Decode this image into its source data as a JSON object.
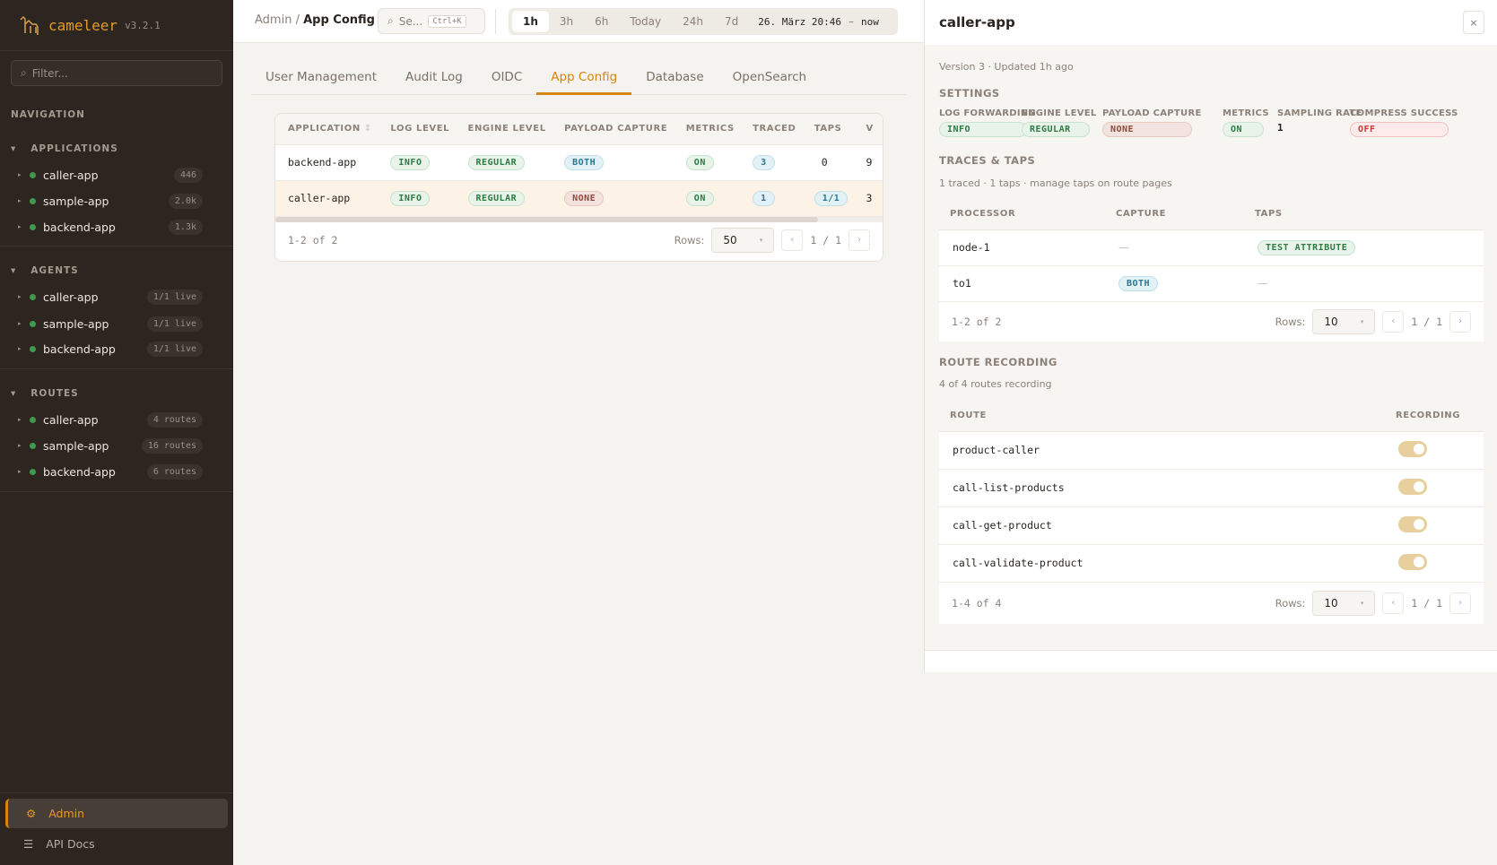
{
  "brand": {
    "name": "cameleer",
    "version": "v3.2.1"
  },
  "sidebar": {
    "filter_placeholder": "Filter...",
    "navigation": "NAVIGATION",
    "groups": [
      {
        "title": "APPLICATIONS",
        "items": [
          {
            "label": "caller-app",
            "badge": "446"
          },
          {
            "label": "sample-app",
            "badge": "2.0k"
          },
          {
            "label": "backend-app",
            "badge": "1.3k"
          }
        ]
      },
      {
        "title": "AGENTS",
        "items": [
          {
            "label": "caller-app",
            "badge": "1/1 live"
          },
          {
            "label": "sample-app",
            "badge": "1/1 live"
          },
          {
            "label": "backend-app",
            "badge": "1/1 live"
          }
        ]
      },
      {
        "title": "ROUTES",
        "items": [
          {
            "label": "caller-app",
            "badge": "4 routes"
          },
          {
            "label": "sample-app",
            "badge": "16 routes"
          },
          {
            "label": "backend-app",
            "badge": "6 routes"
          }
        ]
      }
    ],
    "admin": "Admin",
    "api_docs": "API Docs"
  },
  "topbar": {
    "crumb_root": "Admin",
    "crumb_current": "App Config",
    "search": "Se...",
    "search_kbd": "Ctrl+K",
    "ranges": [
      "1h",
      "3h",
      "6h",
      "Today",
      "24h",
      "7d"
    ],
    "range_from": "26. März 20:46",
    "range_sep": "–",
    "range_to": "now"
  },
  "tabs": [
    "User Management",
    "Audit Log",
    "OIDC",
    "App Config",
    "Database",
    "OpenSearch"
  ],
  "table": {
    "headers": [
      "APPLICATION",
      "LOG LEVEL",
      "ENGINE LEVEL",
      "PAYLOAD CAPTURE",
      "METRICS",
      "TRACED",
      "TAPS",
      "V"
    ],
    "rows": [
      {
        "app": "backend-app",
        "log": "INFO",
        "engine": "REGULAR",
        "payload": "BOTH",
        "metrics": "ON",
        "traced": "3",
        "taps": "0",
        "v": "9"
      },
      {
        "app": "caller-app",
        "log": "INFO",
        "engine": "REGULAR",
        "payload": "NONE",
        "metrics": "ON",
        "traced": "1",
        "taps": "1/1",
        "v": "3"
      }
    ],
    "count": "1-2 of 2",
    "rows_label": "Rows:",
    "rows_value": "50",
    "page": "1 / 1"
  },
  "panel": {
    "title": "caller-app",
    "close": "×",
    "meta": "Version 3 · Updated 1h ago",
    "settings_title": "SETTINGS",
    "settings": [
      {
        "label": "LOG FORWARDING",
        "value": "INFO"
      },
      {
        "label": "ENGINE LEVEL",
        "value": "REGULAR"
      },
      {
        "label": "PAYLOAD CAPTURE",
        "value": "NONE"
      },
      {
        "label": "METRICS",
        "value": "ON"
      },
      {
        "label": "SAMPLING RATE",
        "value": "1"
      },
      {
        "label": "COMPRESS SUCCESS",
        "value": "OFF"
      }
    ],
    "traces_title": "TRACES & TAPS",
    "traces_sub": "1 traced · 1 taps · manage taps on route pages",
    "traces_headers": [
      "PROCESSOR",
      "CAPTURE",
      "TAPS"
    ],
    "traces_rows": [
      {
        "processor": "node-1",
        "capture": "—",
        "taps": "TEST ATTRIBUTE"
      },
      {
        "processor": "to1",
        "capture": "BOTH",
        "taps": "—"
      }
    ],
    "traces_count": "1-2 of 2",
    "rows_label": "Rows:",
    "rows_value": "10",
    "page": "1 / 1",
    "routes_title": "ROUTE RECORDING",
    "routes_sub": "4 of 4 routes recording",
    "routes_headers": [
      "ROUTE",
      "RECORDING"
    ],
    "routes": [
      {
        "name": "product-caller",
        "recording": true
      },
      {
        "name": "call-list-products",
        "recording": true
      },
      {
        "name": "call-get-product",
        "recording": true
      },
      {
        "name": "call-validate-product",
        "recording": true
      }
    ],
    "routes_count": "1-4 of 4"
  },
  "colors": {
    "accent": "#d4860e",
    "sidebar_bg": "#2c2520",
    "live": "#3f9a4e"
  }
}
